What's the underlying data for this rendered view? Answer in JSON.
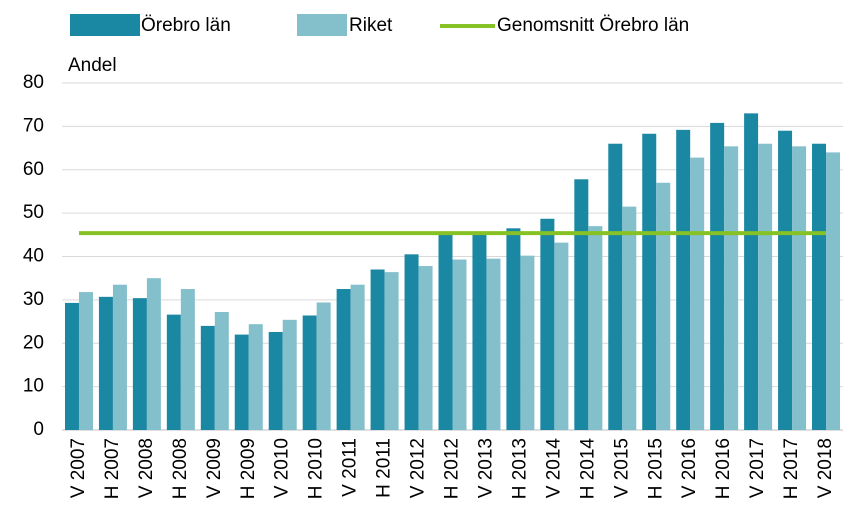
{
  "chart_data": {
    "type": "bar",
    "y_label": "Andel",
    "categories": [
      "V 2007",
      "H 2007",
      "V 2008",
      "H 2008",
      "V 2009",
      "H 2009",
      "V 2010",
      "H 2010",
      "V 2011",
      "H 2011",
      "V 2012",
      "H 2012",
      "V 2013",
      "H 2013",
      "V 2014",
      "H 2014",
      "V 2015",
      "H 2015",
      "V 2016",
      "H 2016",
      "V 2017",
      "H 2017",
      "V 2018"
    ],
    "series": [
      {
        "name": "Örebro län",
        "type": "bar",
        "color": "#1a87a3",
        "values": [
          29.3,
          30.7,
          30.4,
          26.6,
          24,
          22,
          22.6,
          26.4,
          32.5,
          37,
          40.5,
          45.5,
          45.5,
          46.5,
          48.7,
          57.8,
          66,
          68.3,
          69.2,
          70.8,
          73,
          69,
          66
        ]
      },
      {
        "name": "Riket",
        "type": "bar",
        "color": "#84bfcc",
        "values": [
          31.8,
          33.5,
          35,
          32.5,
          27.2,
          24.4,
          25.4,
          29.4,
          33.5,
          36.4,
          37.8,
          39.3,
          39.5,
          40.2,
          43.2,
          47,
          51.5,
          57,
          62.8,
          65.4,
          66,
          65.4,
          64
        ]
      },
      {
        "name": "Genomsnitt Örebro län",
        "type": "line",
        "color": "#86c226",
        "values": [
          45.4,
          45.4,
          45.4,
          45.4,
          45.4,
          45.4,
          45.4,
          45.4,
          45.4,
          45.4,
          45.4,
          45.4,
          45.4,
          45.4,
          45.4,
          45.4,
          45.4,
          45.4,
          45.4,
          45.4,
          45.4,
          45.4,
          45.4
        ]
      }
    ],
    "ylim": [
      0,
      80
    ],
    "yticks": [
      0,
      10,
      20,
      30,
      40,
      50,
      60,
      70,
      80
    ],
    "grid": true
  }
}
